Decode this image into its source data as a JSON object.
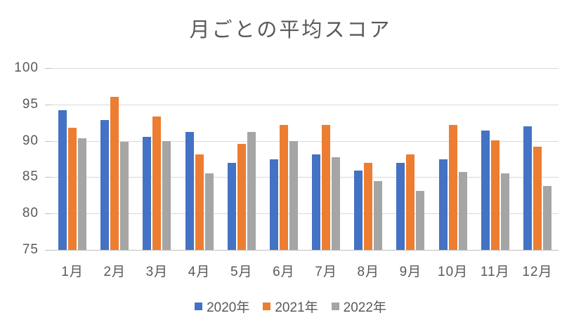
{
  "title": "月ごとの平均スコア",
  "chart_data": {
    "type": "bar",
    "title": "月ごとの平均スコア",
    "categories": [
      "1月",
      "2月",
      "3月",
      "4月",
      "5月",
      "6月",
      "7月",
      "8月",
      "9月",
      "10月",
      "11月",
      "12月"
    ],
    "series": [
      {
        "name": "2020年",
        "color": "#4472C4",
        "values": [
          94.2,
          92.9,
          90.5,
          91.2,
          87.0,
          87.5,
          88.1,
          85.9,
          87.0,
          87.5,
          91.4,
          92.0
        ]
      },
      {
        "name": "2021年",
        "color": "#ED7D31",
        "values": [
          91.8,
          96.0,
          93.3,
          88.1,
          89.6,
          92.2,
          92.2,
          87.0,
          88.1,
          92.2,
          90.1,
          89.2
        ]
      },
      {
        "name": "2022年",
        "color": "#A5A5A5",
        "values": [
          90.3,
          89.9,
          90.0,
          85.5,
          91.2,
          90.0,
          87.7,
          84.5,
          83.1,
          85.7,
          85.5,
          83.8
        ]
      }
    ],
    "xlabel": "",
    "ylabel": "",
    "ylim": [
      75,
      100
    ],
    "yticks": [
      75,
      80,
      85,
      90,
      95,
      100
    ],
    "grid": true,
    "legend_position": "bottom"
  }
}
